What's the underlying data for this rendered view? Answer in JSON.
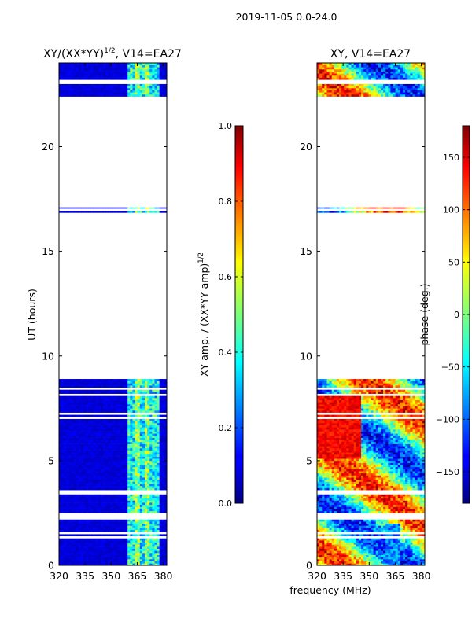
{
  "suptitle": "2019-11-05 0.0-24.0",
  "shared_xlabel": "frequency (MHz)",
  "chart_data": [
    {
      "type": "heatmap",
      "title_main": "XY/(XX*YY)",
      "title_sup": "1/2",
      "title_tail": ", V14=EA27",
      "xlabel": "frequency (MHz)",
      "ylabel": "UT (hours)",
      "xlim": [
        320,
        382
      ],
      "ylim": [
        0,
        24
      ],
      "xticks": [
        320,
        335,
        350,
        365,
        380
      ],
      "yticks": [
        0,
        5,
        10,
        15,
        20
      ],
      "xtick_labels": [
        "320",
        "335",
        "350",
        "365",
        "380"
      ],
      "ytick_labels": [
        "0",
        "5",
        "10",
        "15",
        "20"
      ],
      "data_bands_hours": [
        [
          0,
          8.9
        ],
        [
          16.85,
          17.1
        ],
        [
          22.4,
          24
        ]
      ],
      "colorbar": {
        "label_main": "XY amp. / (XX*YY amp)",
        "label_sup": "1/2",
        "range": [
          0.0,
          1.0
        ],
        "ticks": [
          0.0,
          0.2,
          0.4,
          0.6,
          0.8,
          1.0
        ],
        "tick_labels": [
          "0.0",
          "0.2",
          "0.4",
          "0.6",
          "0.8",
          "1.0"
        ],
        "colormap": "jet"
      }
    },
    {
      "type": "heatmap",
      "title_main": "XY, V14=EA27",
      "xlabel": "frequency (MHz)",
      "ylabel": "",
      "xlim": [
        320,
        382
      ],
      "ylim": [
        0,
        24
      ],
      "xticks": [
        320,
        335,
        350,
        365,
        380
      ],
      "yticks": [
        0,
        5,
        10,
        15,
        20
      ],
      "xtick_labels": [
        "320",
        "335",
        "350",
        "365",
        "380"
      ],
      "ytick_labels": [
        "0",
        "5",
        "10",
        "15",
        "20"
      ],
      "data_bands_hours": [
        [
          0,
          8.9
        ],
        [
          16.85,
          17.1
        ],
        [
          22.4,
          24
        ]
      ],
      "colorbar": {
        "label_main": "phase (deg.)",
        "range": [
          -180,
          180
        ],
        "ticks": [
          -150,
          -100,
          -50,
          0,
          50,
          100,
          150
        ],
        "tick_labels": [
          "−150",
          "−100",
          "−50",
          "0",
          "50",
          "100",
          "150"
        ],
        "colormap": "jet"
      }
    }
  ]
}
